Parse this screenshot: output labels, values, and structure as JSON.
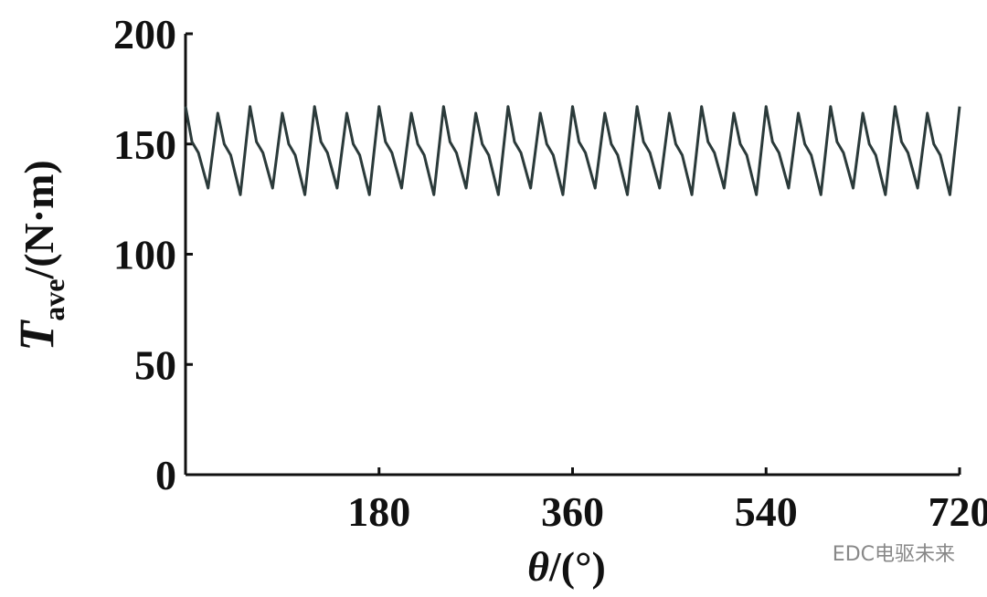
{
  "chart_data": {
    "type": "line",
    "ylabel": {
      "symbol": "T",
      "subscript": "ave",
      "unit": "/(N·m)"
    },
    "xlabel": {
      "symbol": "θ",
      "unit": "/(°)"
    },
    "watermark": "EDC电驱未来",
    "xlim": [
      0,
      720
    ],
    "xticks": [
      180,
      360,
      540,
      720
    ],
    "ylim": [
      0,
      200
    ],
    "yticks": [
      0,
      50,
      100,
      150,
      200
    ],
    "series": [
      {
        "color": "#2b3a3a",
        "x": [
          0,
          6,
          12,
          21,
          30,
          36,
          42,
          51,
          60,
          66,
          72,
          81,
          90,
          96,
          102,
          111,
          120,
          126,
          132,
          141,
          150,
          156,
          162,
          171,
          180,
          186,
          192,
          201,
          210,
          216,
          222,
          231,
          240,
          246,
          252,
          261,
          270,
          276,
          282,
          291,
          300,
          306,
          312,
          321,
          330,
          336,
          342,
          351,
          360,
          366,
          372,
          381,
          390,
          396,
          402,
          411,
          420,
          426,
          432,
          441,
          450,
          456,
          462,
          471,
          480,
          486,
          492,
          501,
          510,
          516,
          522,
          531,
          540,
          546,
          552,
          561,
          570,
          576,
          582,
          591,
          600,
          606,
          612,
          621,
          630,
          636,
          642,
          651,
          660,
          666,
          672,
          681,
          690,
          696,
          702,
          711,
          720
        ],
        "values": [
          167,
          151,
          146,
          130,
          164,
          150,
          145,
          127,
          167,
          151,
          146,
          130,
          164,
          150,
          145,
          127,
          167,
          151,
          146,
          130,
          164,
          150,
          145,
          127,
          167,
          151,
          146,
          130,
          164,
          150,
          145,
          127,
          167,
          151,
          146,
          130,
          164,
          150,
          145,
          127,
          167,
          151,
          146,
          130,
          164,
          150,
          145,
          127,
          167,
          151,
          146,
          130,
          164,
          150,
          145,
          127,
          167,
          151,
          146,
          130,
          164,
          150,
          145,
          127,
          167,
          151,
          146,
          130,
          164,
          150,
          145,
          127,
          167,
          151,
          146,
          130,
          164,
          150,
          145,
          127,
          167,
          151,
          146,
          130,
          164,
          150,
          145,
          127,
          167,
          151,
          146,
          130,
          164,
          150,
          145,
          127,
          167
        ]
      }
    ]
  }
}
